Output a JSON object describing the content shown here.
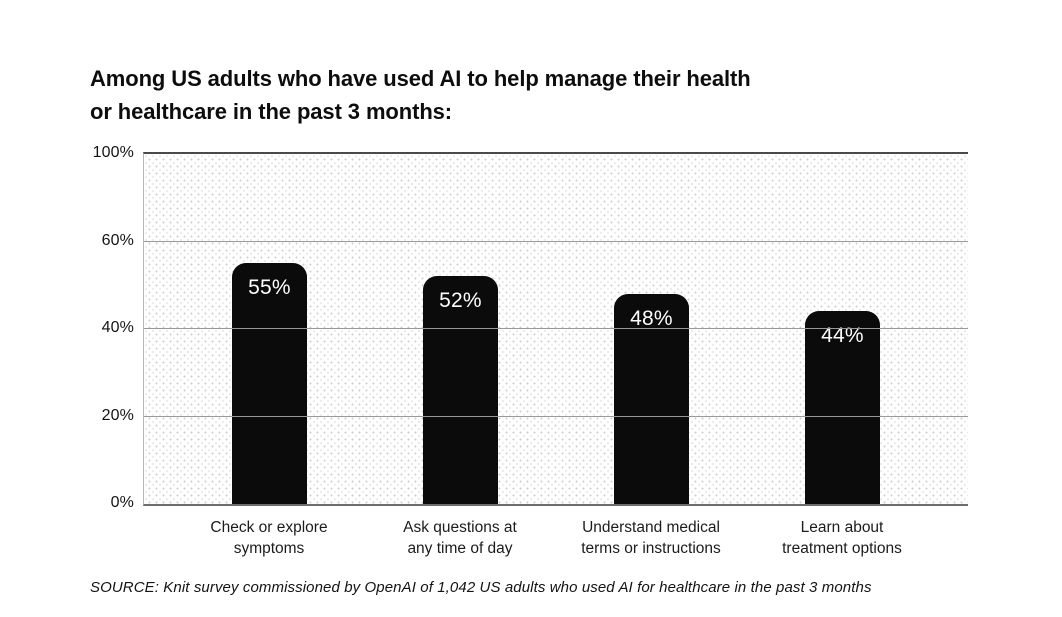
{
  "chart_data": {
    "type": "bar",
    "title": "Among US adults who have used AI to help manage their health\nor healthcare in the past 3 months:",
    "categories": [
      "Check or explore\nsymptoms",
      "Ask questions at\nany time of day",
      "Understand medical\nterms or instructions",
      "Learn about\ntreatment options"
    ],
    "values": [
      55,
      52,
      48,
      44
    ],
    "value_labels": [
      "55%",
      "52%",
      "48%",
      "44%"
    ],
    "y_ticks": [
      "0%",
      "20%",
      "40%",
      "60%",
      "100%"
    ],
    "ylim": [
      0,
      100
    ],
    "y_axis_scale_note": "ticks evenly spaced; 60-100 interval compressed",
    "grid": "horizontal",
    "legend": "none",
    "bar_color": "#0b0b0b",
    "value_label_color": "#ffffff",
    "plot_pattern": "light-gray-dot-grid",
    "source": "SOURCE: Knit survey commissioned by OpenAI of 1,042 US adults who used AI for healthcare in the past 3 months"
  }
}
